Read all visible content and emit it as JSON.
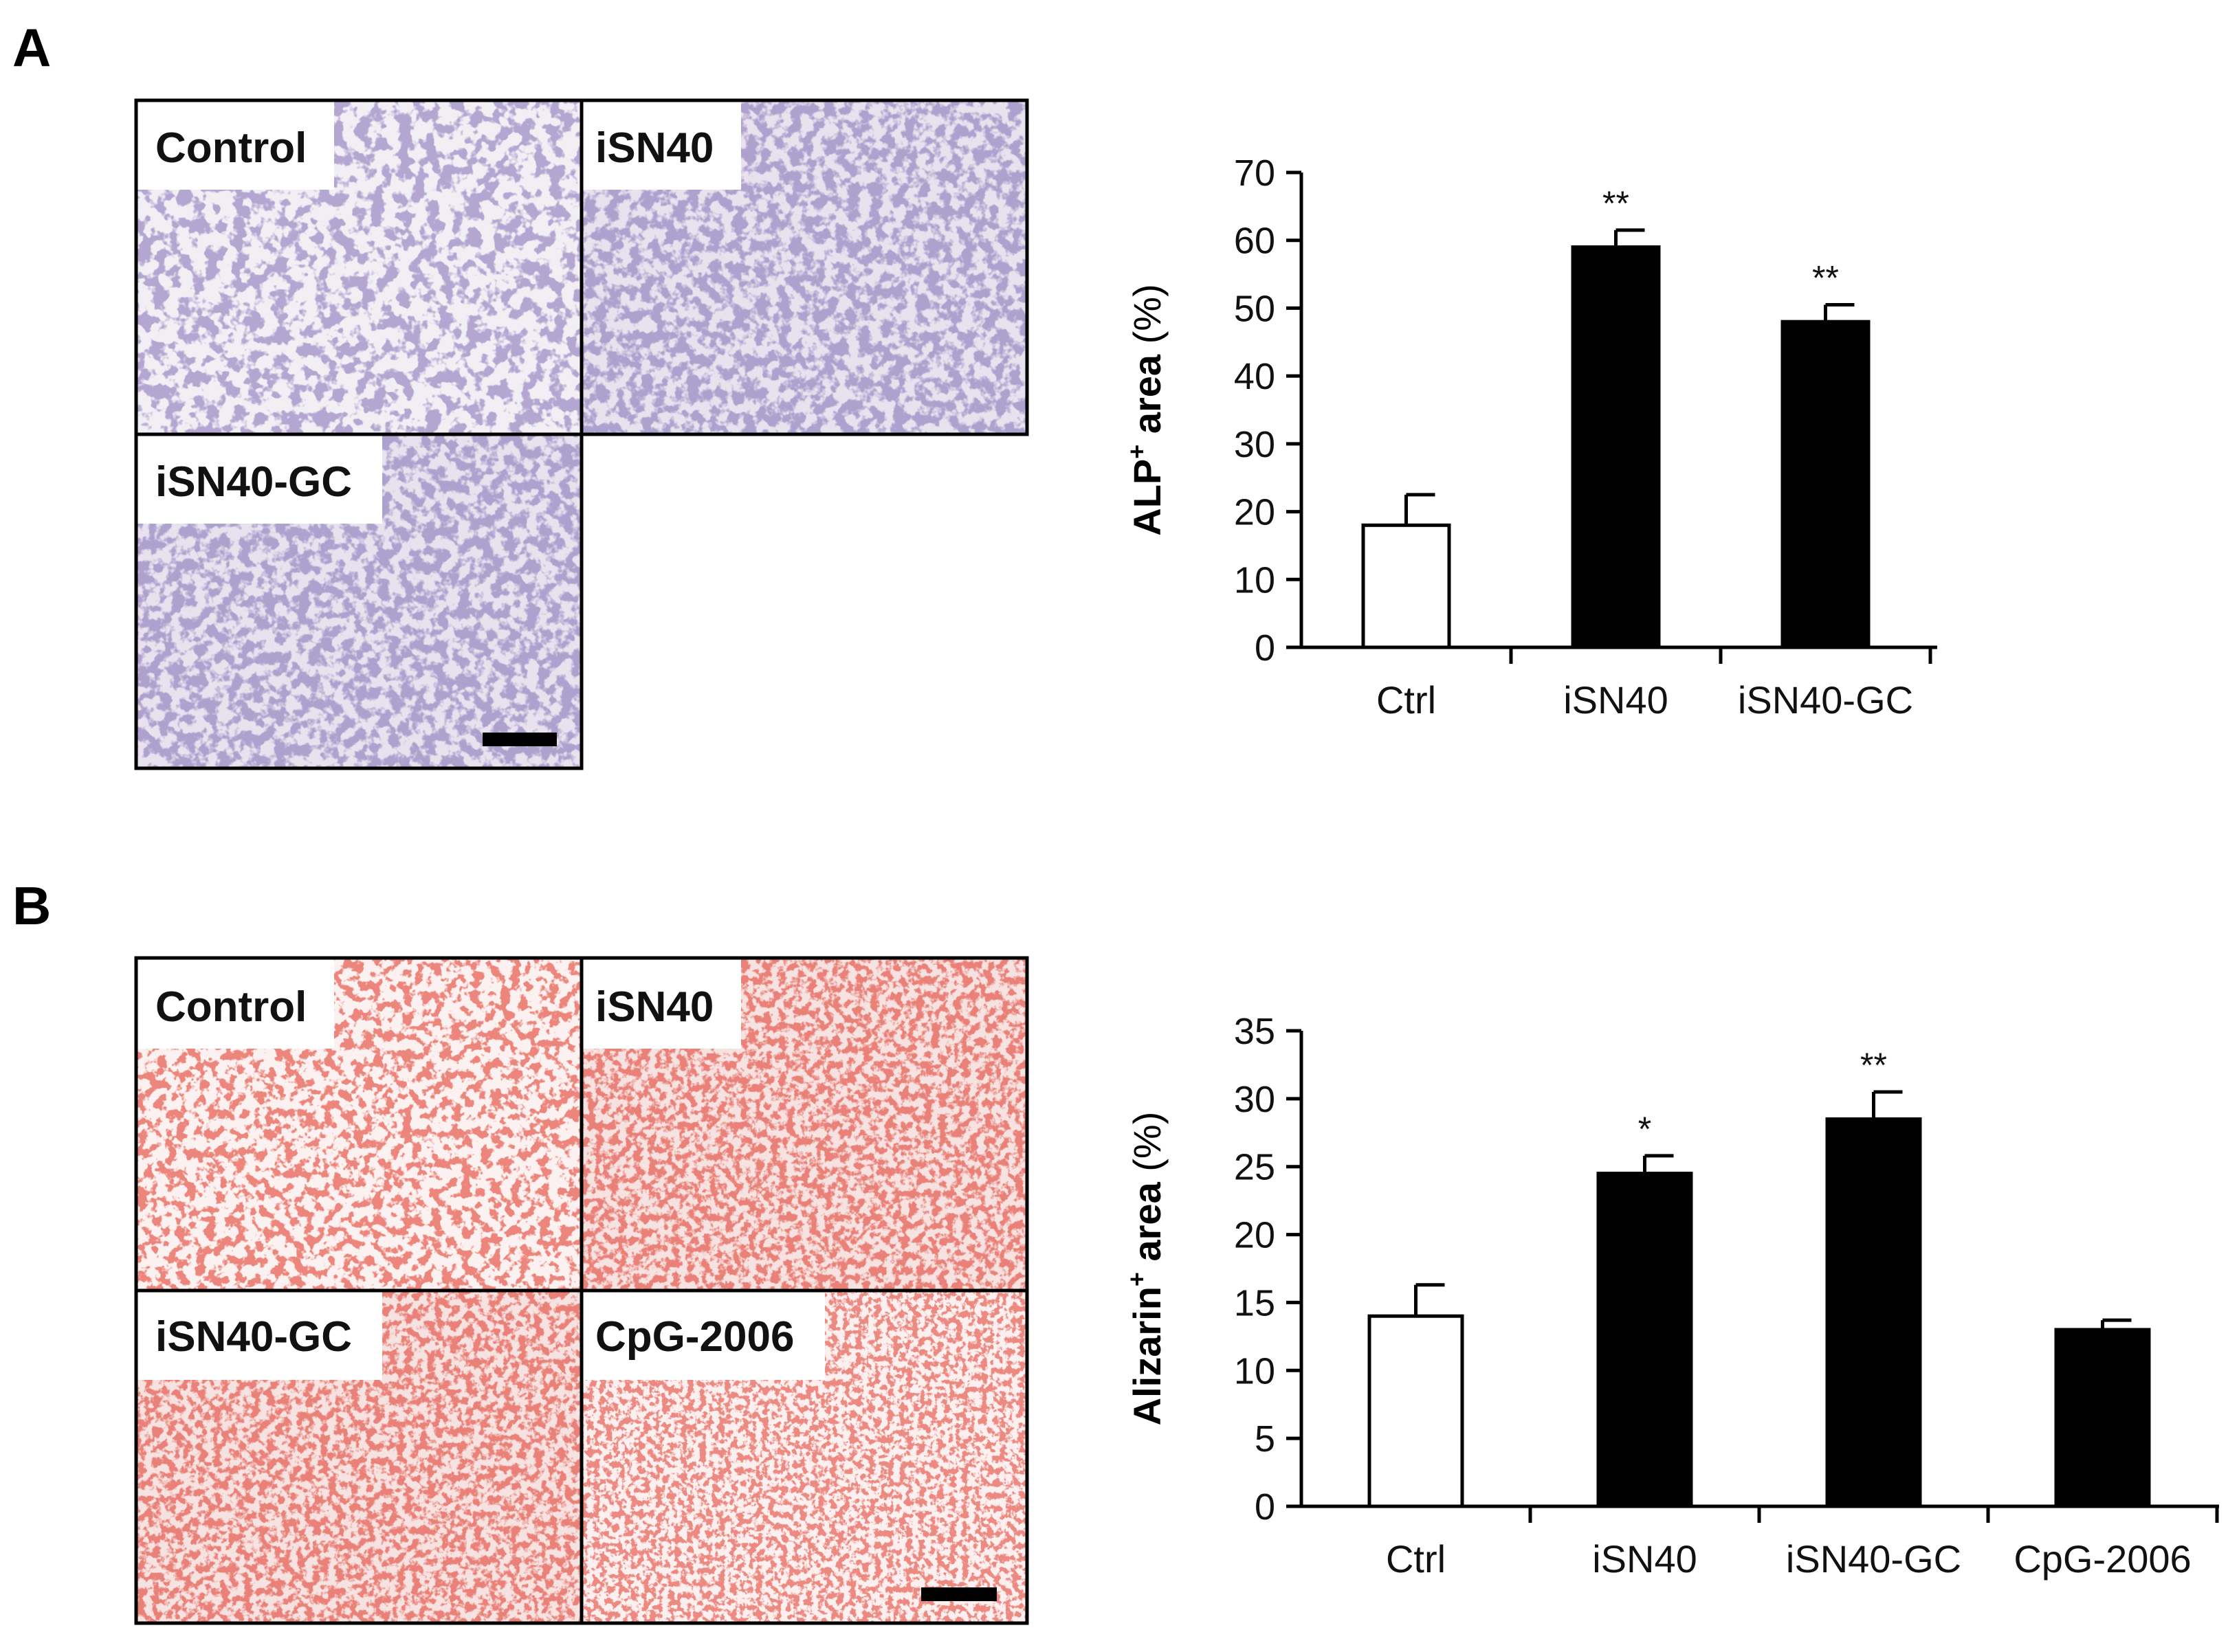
{
  "panels": {
    "A": {
      "letter": "A",
      "images": [
        {
          "label": "Control",
          "stain": "alp-light"
        },
        {
          "label": "iSN40",
          "stain": "alp-dense"
        },
        {
          "label": "iSN40-GC",
          "stain": "alp-dense"
        }
      ],
      "has_scale_bar": true
    },
    "B": {
      "letter": "B",
      "images": [
        {
          "label": "Control",
          "stain": "alizarin-light"
        },
        {
          "label": "iSN40",
          "stain": "alizarin-dense"
        },
        {
          "label": "iSN40-GC",
          "stain": "alizarin-dense"
        },
        {
          "label": "CpG-2006",
          "stain": "alizarin-medium"
        }
      ],
      "has_scale_bar": true
    }
  },
  "colors": {
    "alp_stain": "#6b5b9e",
    "alp_background": "#e7e2ee",
    "alizarin_stain": "#d2382f",
    "alizarin_background": "#f6e2e0",
    "bar_control": "#ffffff",
    "bar_treatment": "#000000",
    "axis": "#000000"
  },
  "chart_data": [
    {
      "type": "bar",
      "ylabel_main": "ALP",
      "ylabel_sup": "+",
      "ylabel_rest": " area ",
      "ylabel_unit": "(%)",
      "categories": [
        "Ctrl",
        "iSN40",
        "iSN40-GC"
      ],
      "values": [
        18,
        59,
        48
      ],
      "errors": [
        4.5,
        2.5,
        2.5
      ],
      "fills": [
        "white",
        "black",
        "black"
      ],
      "significance": [
        "",
        "**",
        "**"
      ],
      "ylim": [
        0,
        70
      ],
      "yticks": [
        0,
        10,
        20,
        30,
        40,
        50,
        60,
        70
      ],
      "grid": false,
      "legend": "none"
    },
    {
      "type": "bar",
      "ylabel_main": "Alizarin",
      "ylabel_sup": "+",
      "ylabel_rest": " area ",
      "ylabel_unit": "(%)",
      "categories": [
        "Ctrl",
        "iSN40",
        "iSN40-GC",
        "CpG-2006"
      ],
      "values": [
        14,
        24.5,
        28.5,
        13
      ],
      "errors": [
        2.3,
        1.3,
        2.0,
        0.7
      ],
      "fills": [
        "white",
        "black",
        "black",
        "black"
      ],
      "significance": [
        "",
        "*",
        "**",
        ""
      ],
      "ylim": [
        0,
        35
      ],
      "yticks": [
        0,
        5,
        10,
        15,
        20,
        25,
        30,
        35
      ],
      "grid": false,
      "legend": "none"
    }
  ]
}
